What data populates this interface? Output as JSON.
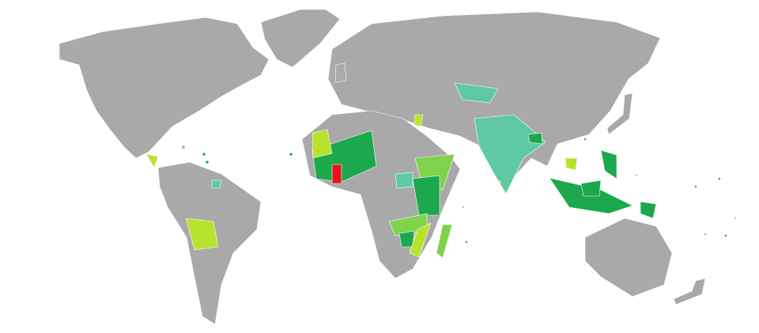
{
  "map": {
    "background": "#ffffff",
    "land_color": "#a9a9a9",
    "border_color": "#ffffff",
    "region_colors": [
      "#1ca84d",
      "#7ed34a",
      "#b7e32c",
      "#5fc9a3",
      "#e8141c"
    ]
  }
}
